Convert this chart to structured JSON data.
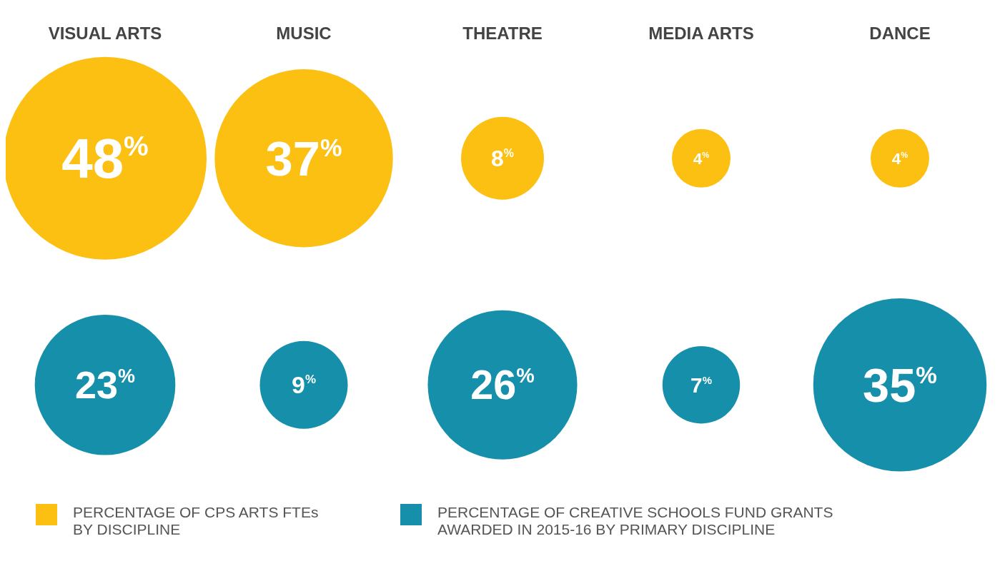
{
  "chart_data": {
    "type": "other",
    "categories": [
      "VISUAL ARTS",
      "MUSIC",
      "THEATRE",
      "MEDIA ARTS",
      "DANCE"
    ],
    "series": [
      {
        "name": "PERCENTAGE OF CPS ARTS FTEs BY DISCIPLINE",
        "color": "#fbc012",
        "values": [
          48,
          37,
          8,
          4,
          4
        ],
        "value_labels": [
          "48$^{%}$",
          "37$^{%}$",
          "8$^{%}$",
          "4$^{%}$",
          "4$^{%}$"
        ]
      },
      {
        "name": "PERCENTAGE OF CREATIVE SCHOOLS FUND GRANTS AWARDED IN 2015-16 BY PRIMARY DISCIPLINE",
        "color": "#168faa",
        "values": [
          23,
          9,
          26,
          7,
          35
        ],
        "value_labels": [
          "23$^{%}$",
          "9$^{%}$",
          "26$^{%}$",
          "7$^{%}$",
          "35$^{%}$"
        ]
      }
    ],
    "data_labels": true,
    "legend": "bottom"
  }
}
